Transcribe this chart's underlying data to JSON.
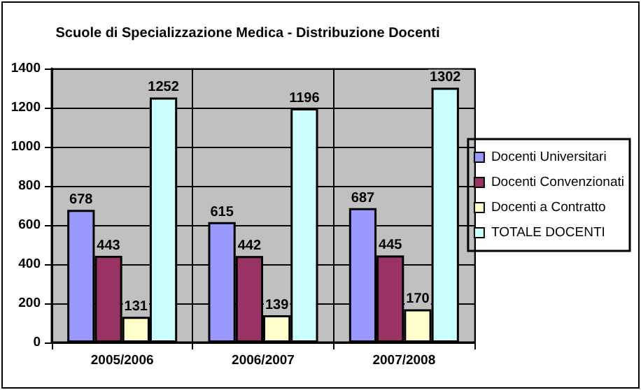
{
  "chart_data": {
    "type": "bar",
    "title": "Scuole di Specializzazione Medica - Distribuzione Docenti",
    "categories": [
      "2005/2006",
      "2006/2007",
      "2007/2008"
    ],
    "series": [
      {
        "name": "Docenti Universitari",
        "color": "#9999ff",
        "values": [
          678,
          615,
          687
        ]
      },
      {
        "name": "Docenti Convenzionati",
        "color": "#993366",
        "values": [
          443,
          442,
          445
        ]
      },
      {
        "name": "Docenti a Contratto",
        "color": "#ffffcc",
        "values": [
          131,
          139,
          170
        ]
      },
      {
        "name": "TOTALE DOCENTI",
        "color": "#ccffff",
        "values": [
          1252,
          1196,
          1302
        ]
      }
    ],
    "ylim": [
      0,
      1400
    ],
    "yticks": [
      0,
      200,
      400,
      600,
      800,
      1000,
      1200,
      1400
    ],
    "grid": true,
    "legend": "right",
    "data_labels": true
  }
}
